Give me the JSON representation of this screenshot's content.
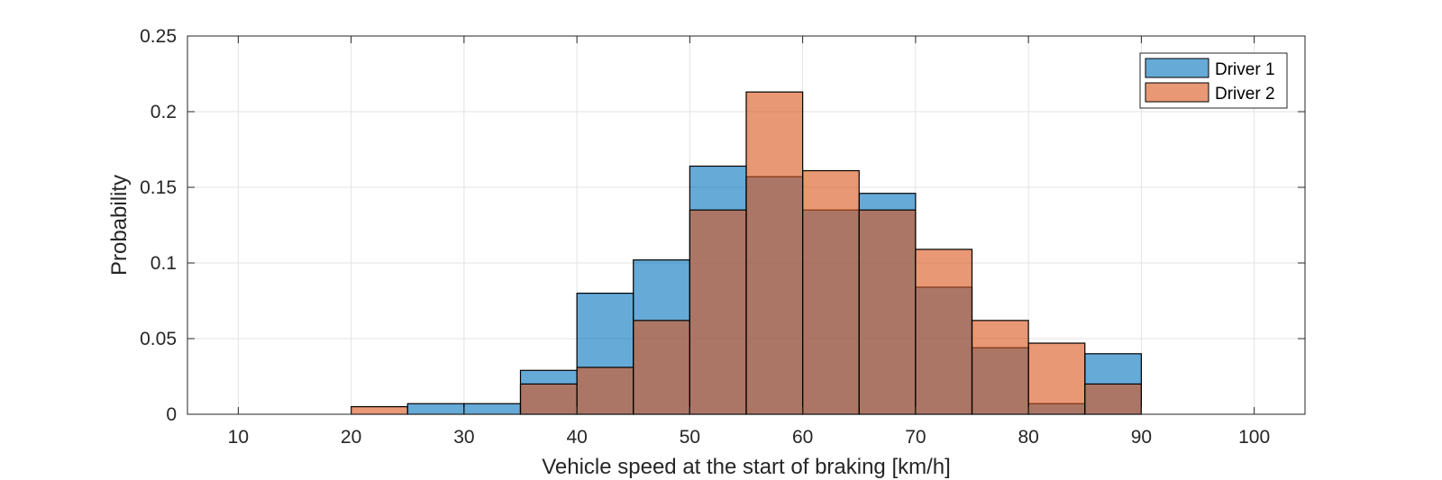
{
  "chart_data": {
    "type": "bar",
    "subtype": "overlapping-histogram",
    "title": "",
    "xlabel": "Vehicle speed at the start of braking [km/h]",
    "ylabel": "Probability",
    "xlim": [
      5.5,
      104.5
    ],
    "ylim": [
      0,
      0.25
    ],
    "xticks": [
      "10",
      "20",
      "30",
      "40",
      "50",
      "60",
      "70",
      "80",
      "90",
      "100"
    ],
    "yticks": [
      "0",
      "0.05",
      "0.1",
      "0.15",
      "0.2",
      "0.25"
    ],
    "grid": true,
    "legend_position": "top-right",
    "bin_edges": [
      20,
      25,
      30,
      35,
      40,
      45,
      50,
      55,
      60,
      65,
      70,
      75,
      80,
      85,
      90
    ],
    "series": [
      {
        "name": "Driver 1",
        "color": "#0072BD",
        "values": [
          0,
          0.007,
          0.007,
          0.029,
          0.08,
          0.102,
          0.164,
          0.157,
          0.135,
          0.146,
          0.084,
          0.044,
          0.007,
          0.04
        ]
      },
      {
        "name": "Driver 2",
        "color": "#D95319",
        "values": [
          0.005,
          0,
          0,
          0.02,
          0.031,
          0.062,
          0.135,
          0.213,
          0.161,
          0.135,
          0.109,
          0.062,
          0.047,
          0.02
        ]
      }
    ],
    "bar_alpha": 0.6
  }
}
